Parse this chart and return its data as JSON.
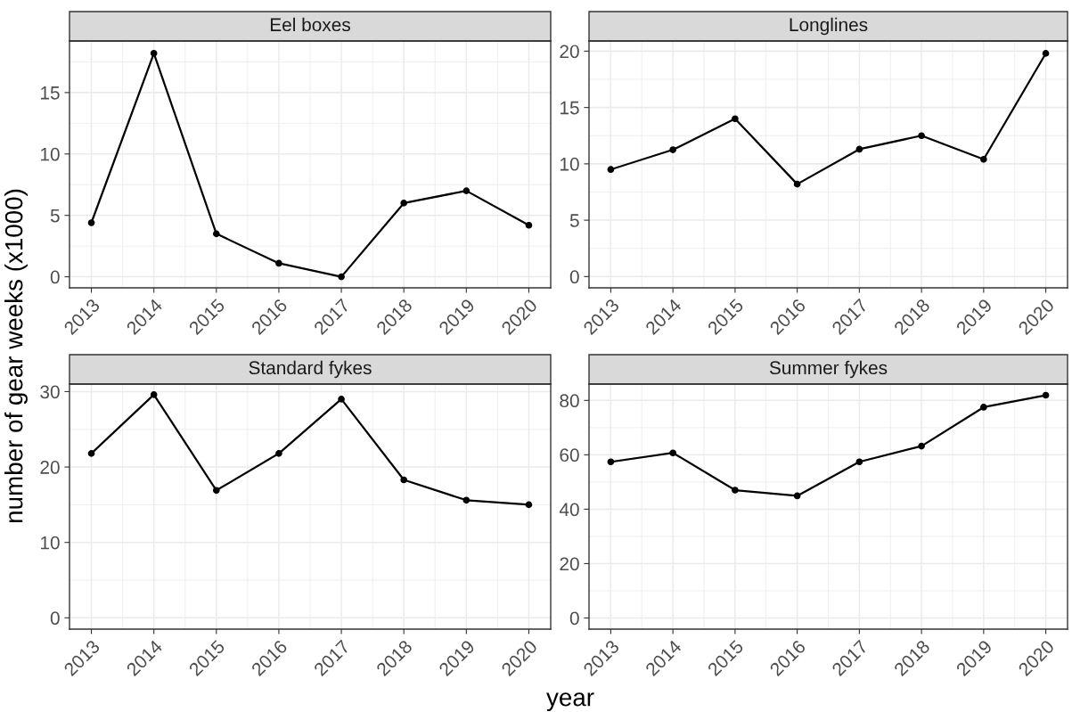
{
  "chart_data": [
    {
      "type": "line",
      "title": "Eel boxes",
      "ylabel": "number of gear weeks (x1000)",
      "x": [
        2013,
        2014,
        2015,
        2016,
        2017,
        2018,
        2019,
        2020
      ],
      "series": [
        {
          "color": "#000000",
          "values": [
            4.4,
            18.2,
            3.5,
            1.1,
            0,
            6.0,
            7.0,
            4.2
          ]
        }
      ],
      "xlim": [
        2012.65,
        2020.35
      ],
      "xticks": [
        2013,
        2014,
        2015,
        2016,
        2017,
        2018,
        2019,
        2020
      ],
      "ylim": [
        -0.9,
        19.2
      ],
      "yticks": [
        0,
        5,
        10,
        15
      ],
      "grid": true,
      "marker": "circle",
      "line_style": "solid",
      "legend": false
    },
    {
      "type": "line",
      "title": "Longlines",
      "x": [
        2013,
        2014,
        2015,
        2016,
        2017,
        2018,
        2019,
        2020
      ],
      "series": [
        {
          "color": "#000000",
          "values": [
            9.5,
            11.25,
            14.0,
            8.2,
            11.3,
            12.5,
            10.4,
            19.8
          ]
        }
      ],
      "xlim": [
        2012.65,
        2020.35
      ],
      "xticks": [
        2013,
        2014,
        2015,
        2016,
        2017,
        2018,
        2019,
        2020
      ],
      "ylim": [
        -1.0,
        20.9
      ],
      "yticks": [
        0,
        5,
        10,
        15,
        20
      ],
      "grid": true,
      "marker": "circle",
      "line_style": "solid",
      "legend": false
    },
    {
      "type": "line",
      "title": "Standard fykes",
      "xlabel": "year",
      "x": [
        2013,
        2014,
        2015,
        2016,
        2017,
        2018,
        2019,
        2020
      ],
      "series": [
        {
          "color": "#000000",
          "values": [
            21.8,
            29.6,
            16.9,
            21.8,
            29.0,
            18.3,
            15.6,
            15.0
          ]
        }
      ],
      "xlim": [
        2012.65,
        2020.35
      ],
      "xticks": [
        2013,
        2014,
        2015,
        2016,
        2017,
        2018,
        2019,
        2020
      ],
      "ylim": [
        -1.5,
        31.0
      ],
      "yticks": [
        0,
        10,
        20,
        30
      ],
      "grid": true,
      "marker": "circle",
      "line_style": "solid",
      "legend": false
    },
    {
      "type": "line",
      "title": "Summer fykes",
      "x": [
        2013,
        2014,
        2015,
        2016,
        2017,
        2018,
        2019,
        2020
      ],
      "series": [
        {
          "color": "#000000",
          "values": [
            57.4,
            60.7,
            47.0,
            44.9,
            57.4,
            63.2,
            77.5,
            81.9
          ]
        }
      ],
      "xlim": [
        2012.65,
        2020.35
      ],
      "xticks": [
        2013,
        2014,
        2015,
        2016,
        2017,
        2018,
        2019,
        2020
      ],
      "ylim": [
        -4.1,
        86.0
      ],
      "yticks": [
        0,
        20,
        40,
        60,
        80
      ],
      "grid": true,
      "marker": "circle",
      "line_style": "solid",
      "legend": false
    }
  ]
}
